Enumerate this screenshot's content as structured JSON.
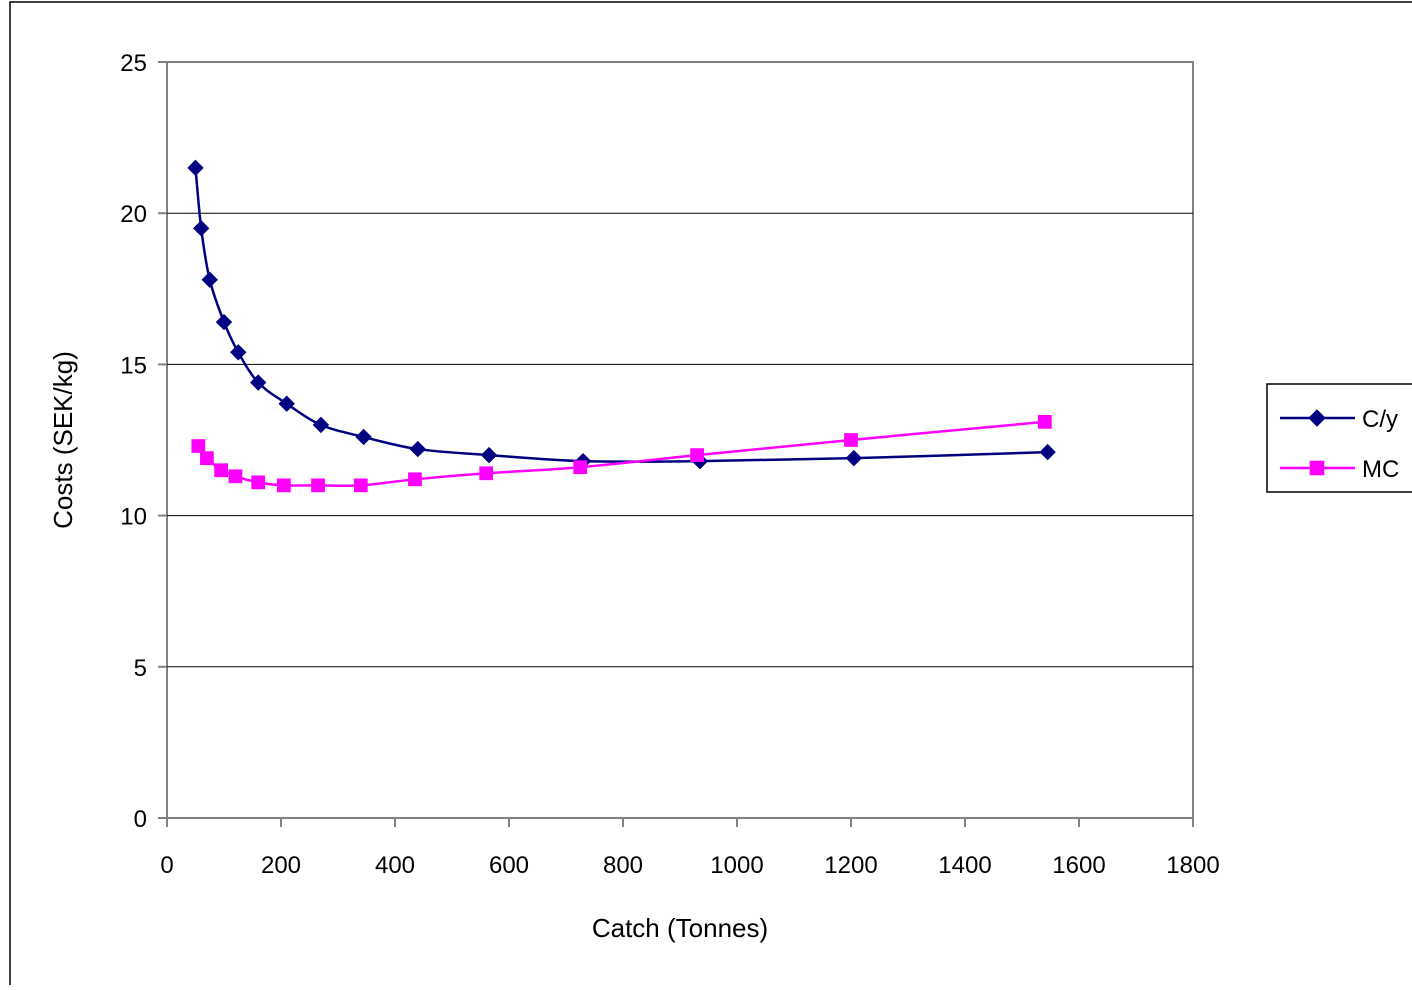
{
  "chart_data": {
    "type": "line",
    "title": "",
    "xlabel": "Catch (Tonnes)",
    "ylabel": "Costs (SEK/kg)",
    "xlim": [
      0,
      1800
    ],
    "ylim": [
      0,
      25
    ],
    "x_ticks": [
      0,
      200,
      400,
      600,
      800,
      1000,
      1200,
      1400,
      1600,
      1800
    ],
    "x_tick_labels": [
      "0",
      "200",
      "400",
      "600",
      "800",
      "1000",
      "1200",
      "1400",
      "1600",
      "1800"
    ],
    "y_ticks": [
      0,
      5,
      10,
      15,
      20,
      25
    ],
    "y_tick_labels": [
      "0",
      "5",
      "10",
      "15",
      "20",
      "25"
    ],
    "grid": "horizontal",
    "legend_position": "right",
    "series": [
      {
        "name": "C/y",
        "color": "#000080",
        "marker": "diamond",
        "x": [
          50,
          60,
          75,
          100,
          125,
          160,
          210,
          270,
          345,
          440,
          565,
          730,
          935,
          1205,
          1545
        ],
        "y": [
          21.5,
          19.5,
          17.8,
          16.4,
          15.4,
          14.4,
          13.7,
          13.0,
          12.6,
          12.2,
          12.0,
          11.8,
          11.8,
          11.9,
          12.1
        ]
      },
      {
        "name": "MC",
        "color": "#ff00ff",
        "marker": "square",
        "x": [
          55,
          70,
          95,
          120,
          160,
          205,
          265,
          340,
          435,
          560,
          725,
          930,
          1200,
          1540
        ],
        "y": [
          12.3,
          11.9,
          11.5,
          11.3,
          11.1,
          11.0,
          11.0,
          11.0,
          11.2,
          11.4,
          11.6,
          12.0,
          12.5,
          13.1
        ]
      }
    ]
  }
}
